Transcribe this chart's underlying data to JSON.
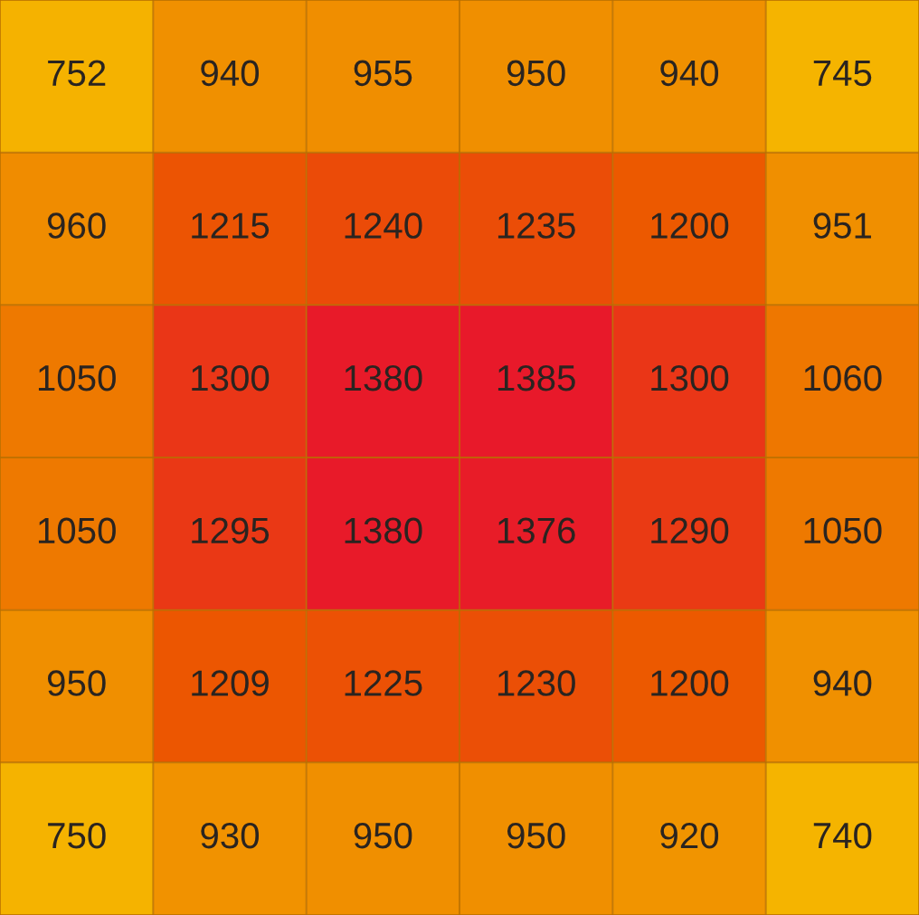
{
  "chart_data": {
    "type": "heatmap",
    "categories": [
      null,
      null,
      null,
      null,
      null,
      null
    ],
    "y_categories": [
      null,
      null,
      null,
      null,
      null,
      null
    ],
    "cells": [
      [
        752,
        940,
        955,
        950,
        940,
        745
      ],
      [
        960,
        1215,
        1240,
        1235,
        1200,
        951
      ],
      [
        1050,
        1300,
        1380,
        1385,
        1300,
        1060
      ],
      [
        1050,
        1295,
        1380,
        1376,
        1290,
        1050
      ],
      [
        950,
        1209,
        1225,
        1230,
        1200,
        940
      ],
      [
        750,
        930,
        950,
        950,
        920,
        740
      ]
    ],
    "data_labels": true,
    "grid": true
  }
}
